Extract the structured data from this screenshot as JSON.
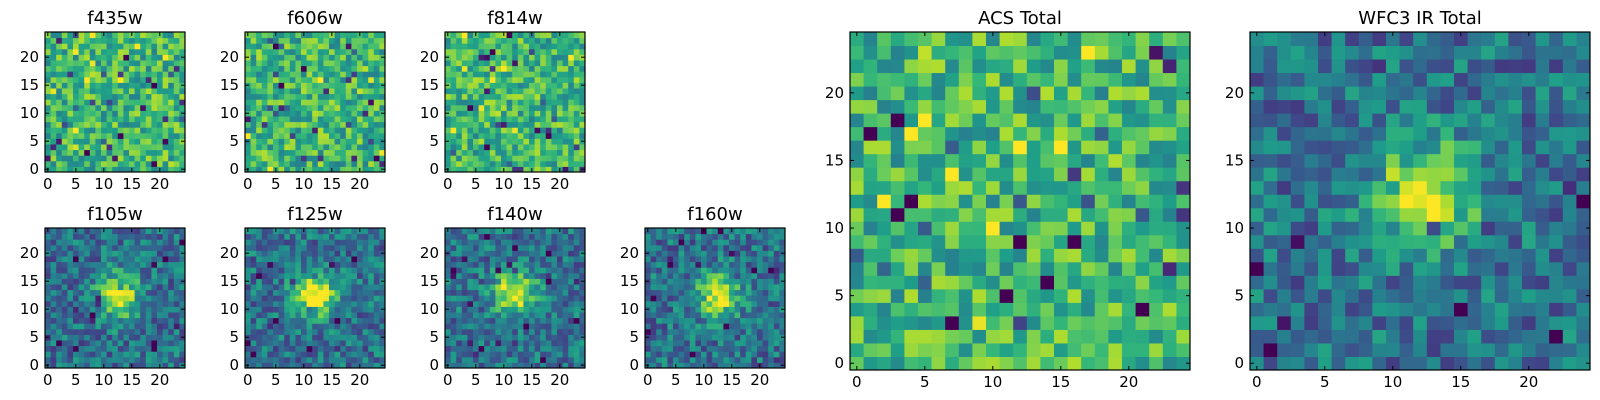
{
  "chart_data": [
    {
      "type": "heatmap",
      "title": "f435w",
      "x_ticks": [
        "0",
        "5",
        "10",
        "15",
        "20"
      ],
      "y_ticks": [
        "0",
        "5",
        "10",
        "15",
        "20"
      ],
      "xlim": [
        0,
        25
      ],
      "ylim": [
        0,
        25
      ],
      "grid_size": [
        25,
        25
      ],
      "pattern": "noise",
      "colormap": "viridis"
    },
    {
      "type": "heatmap",
      "title": "f606w",
      "x_ticks": [
        "0",
        "5",
        "10",
        "15",
        "20"
      ],
      "y_ticks": [
        "0",
        "5",
        "10",
        "15",
        "20"
      ],
      "xlim": [
        0,
        25
      ],
      "ylim": [
        0,
        25
      ],
      "grid_size": [
        25,
        25
      ],
      "pattern": "noise",
      "colormap": "viridis"
    },
    {
      "type": "heatmap",
      "title": "f814w",
      "x_ticks": [
        "0",
        "5",
        "10",
        "15",
        "20"
      ],
      "y_ticks": [
        "0",
        "5",
        "10",
        "15",
        "20"
      ],
      "xlim": [
        0,
        25
      ],
      "ylim": [
        0,
        25
      ],
      "grid_size": [
        25,
        25
      ],
      "pattern": "noise",
      "colormap": "viridis"
    },
    {
      "type": "heatmap",
      "title": "f105w",
      "x_ticks": [
        "0",
        "5",
        "10",
        "15",
        "20"
      ],
      "y_ticks": [
        "0",
        "5",
        "10",
        "15",
        "20"
      ],
      "xlim": [
        0,
        25
      ],
      "ylim": [
        0,
        25
      ],
      "grid_size": [
        25,
        25
      ],
      "pattern": "central source",
      "source_center": [
        12.5,
        12.5
      ],
      "colormap": "viridis"
    },
    {
      "type": "heatmap",
      "title": "f125w",
      "x_ticks": [
        "0",
        "5",
        "10",
        "15",
        "20"
      ],
      "y_ticks": [
        "0",
        "5",
        "10",
        "15",
        "20"
      ],
      "xlim": [
        0,
        25
      ],
      "ylim": [
        0,
        25
      ],
      "grid_size": [
        25,
        25
      ],
      "pattern": "central source",
      "source_center": [
        12,
        12.5
      ],
      "colormap": "viridis"
    },
    {
      "type": "heatmap",
      "title": "f140w",
      "x_ticks": [
        "0",
        "5",
        "10",
        "15",
        "20"
      ],
      "y_ticks": [
        "0",
        "5",
        "10",
        "15",
        "20"
      ],
      "xlim": [
        0,
        25
      ],
      "ylim": [
        0,
        25
      ],
      "grid_size": [
        25,
        25
      ],
      "pattern": "central source",
      "source_center": [
        12,
        13
      ],
      "colormap": "viridis"
    },
    {
      "type": "heatmap",
      "title": "f160w",
      "x_ticks": [
        "0",
        "5",
        "10",
        "15",
        "20"
      ],
      "y_ticks": [
        "0",
        "5",
        "10",
        "15",
        "20"
      ],
      "xlim": [
        0,
        25
      ],
      "ylim": [
        0,
        25
      ],
      "grid_size": [
        25,
        25
      ],
      "pattern": "central source",
      "source_center": [
        12.5,
        12.5
      ],
      "colormap": "viridis"
    },
    {
      "type": "heatmap",
      "title": "ACS Total",
      "x_ticks": [
        "0",
        "5",
        "10",
        "15",
        "20"
      ],
      "y_ticks": [
        "0",
        "5",
        "10",
        "15",
        "20"
      ],
      "xlim": [
        0,
        25
      ],
      "ylim": [
        0,
        25
      ],
      "grid_size": [
        25,
        25
      ],
      "pattern": "noise",
      "colormap": "viridis"
    },
    {
      "type": "heatmap",
      "title": "WFC3 IR Total",
      "x_ticks": [
        "0",
        "5",
        "10",
        "15",
        "20"
      ],
      "y_ticks": [
        "0",
        "5",
        "10",
        "15",
        "20"
      ],
      "xlim": [
        0,
        25
      ],
      "ylim": [
        0,
        25
      ],
      "grid_size": [
        25,
        25
      ],
      "pattern": "central source",
      "source_center": [
        12.5,
        12.5
      ],
      "colormap": "viridis"
    }
  ]
}
